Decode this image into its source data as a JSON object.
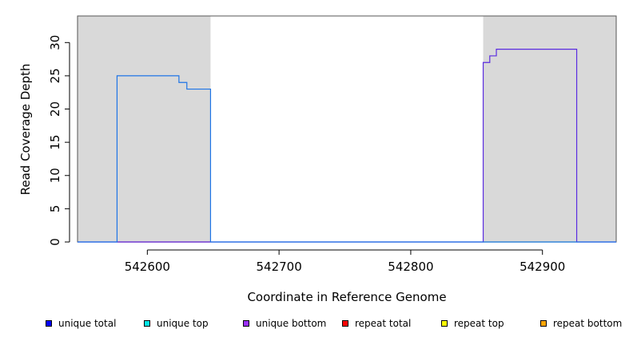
{
  "chart_data": {
    "type": "line",
    "title": "",
    "xlabel": "Coordinate in Reference Genome",
    "ylabel": "Read Coverage Depth",
    "xlim": [
      542547,
      542956
    ],
    "ylim": [
      0,
      34
    ],
    "x_ticks": [
      542600,
      542700,
      542800,
      542900
    ],
    "x_tick_labels": [
      "542600",
      "542700",
      "542800",
      "542900"
    ],
    "y_ticks": [
      0,
      5,
      10,
      15,
      20,
      25,
      30
    ],
    "y_tick_labels": [
      "0",
      "5",
      "10",
      "15",
      "20",
      "25",
      "30"
    ],
    "grid": false,
    "shaded_regions": [
      {
        "x_start": 542547,
        "x_end": 542648,
        "color": "#d9d9d9"
      },
      {
        "x_start": 542855,
        "x_end": 542956,
        "color": "#d9d9d9"
      }
    ],
    "series": [
      {
        "name": "unique total",
        "color": "#1e74e6",
        "step": true,
        "points": [
          [
            542547,
            0
          ],
          [
            542577,
            0
          ],
          [
            542577,
            25
          ],
          [
            542624,
            25
          ],
          [
            542624,
            24
          ],
          [
            542630,
            24
          ],
          [
            542630,
            23
          ],
          [
            542648,
            23
          ],
          [
            542648,
            0
          ],
          [
            542956,
            0
          ]
        ]
      },
      {
        "name": "unique bottom",
        "color": "#5a2be0",
        "step": true,
        "points": [
          [
            542547,
            0
          ],
          [
            542855,
            0
          ],
          [
            542855,
            27
          ],
          [
            542860,
            27
          ],
          [
            542860,
            28
          ],
          [
            542865,
            28
          ],
          [
            542865,
            29
          ],
          [
            542926,
            29
          ],
          [
            542926,
            0
          ],
          [
            542956,
            0
          ]
        ]
      },
      {
        "name": "repeat total",
        "color": "#e06060",
        "step": true,
        "points": [
          [
            542577,
            0
          ],
          [
            542648,
            0
          ]
        ]
      },
      {
        "name": "unique top",
        "color": "#7fd07f",
        "step": true,
        "points": [
          [
            542855,
            0
          ],
          [
            542926,
            0
          ]
        ]
      }
    ],
    "legend": {
      "placement": "bottom",
      "entries": [
        {
          "label": "unique total",
          "color": "#0000ff"
        },
        {
          "label": "unique top",
          "color": "#00e5e5"
        },
        {
          "label": "unique bottom",
          "color": "#9b30ff"
        },
        {
          "label": "repeat total",
          "color": "#ff0000"
        },
        {
          "label": "repeat top",
          "color": "#ffff00"
        },
        {
          "label": "repeat bottom",
          "color": "#ffa500"
        }
      ]
    }
  }
}
